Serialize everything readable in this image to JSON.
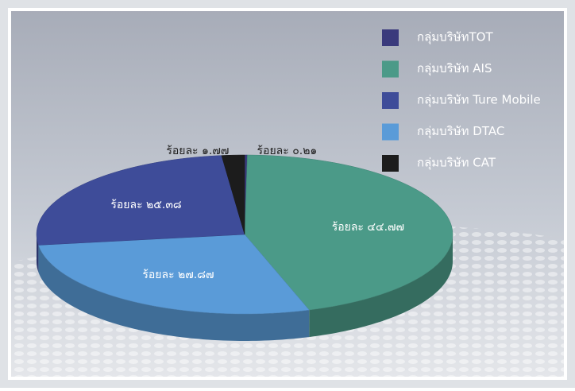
{
  "chart_data": {
    "type": "pie3d",
    "series": [
      {
        "name": "กลุ่มบริษัทTOT",
        "color": "#3a3a7c",
        "values": [
          0.21
        ],
        "value_labels": [
          "ร้อยละ ๐.๒๑"
        ]
      },
      {
        "name": "กลุ่มบริษัท AIS",
        "color": "#4b9a88",
        "values": [
          44.77
        ],
        "value_labels": [
          "ร้อยละ ๔๔.๗๗"
        ]
      },
      {
        "name": "กลุ่มบริษัท Ture Mobile",
        "color": "#3e4c99",
        "values": [
          25.38
        ],
        "value_labels": [
          "ร้อยละ ๒๕.๓๘"
        ]
      },
      {
        "name": "กลุ่มบริษัท DTAC",
        "color": "#5a9bd8",
        "values": [
          27.87
        ],
        "value_labels": [
          "ร้อยละ ๒๗.๘๗"
        ]
      },
      {
        "name": "กลุ่มบริษัท CAT",
        "color": "#1c1c1c",
        "values": [
          1.77
        ],
        "value_labels": [
          "ร้อยละ ๑.๗๗"
        ]
      }
    ]
  }
}
